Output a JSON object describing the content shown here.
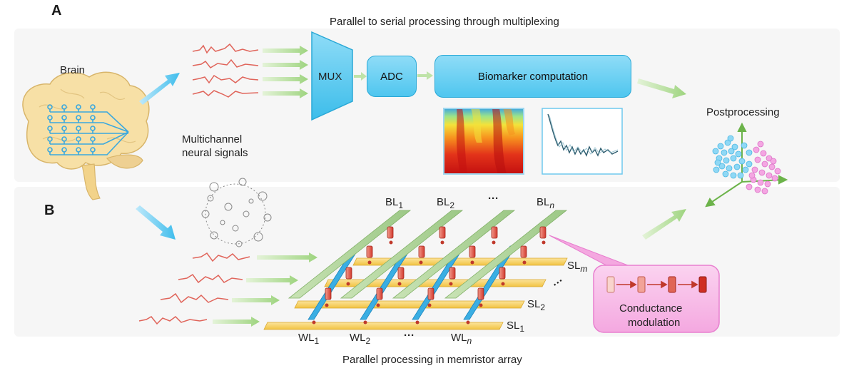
{
  "panels": {
    "a_label": "A",
    "b_label": "B",
    "a_title": "Parallel to serial processing through multiplexing",
    "b_title": "Parallel processing in memristor array"
  },
  "brain": {
    "label": "Brain",
    "signals_line1": "Multichannel",
    "signals_line2": "neural signals"
  },
  "pipeline": {
    "mux": "MUX",
    "adc": "ADC",
    "biomarker": "Biomarker computation"
  },
  "post": {
    "label": "Postprocessing"
  },
  "array": {
    "bl1": "BL",
    "bl1_sub": "1",
    "bl2": "BL",
    "bl2_sub": "2",
    "bln": "BL",
    "bln_sub": "n",
    "sl1": "SL",
    "sl1_sub": "1",
    "sl2": "SL",
    "sl2_sub": "2",
    "slm": "SL",
    "slm_sub": "m",
    "wl1": "WL",
    "wl1_sub": "1",
    "wl2": "WL",
    "wl2_sub": "2",
    "wln": "WL",
    "wln_sub": "n",
    "dots": "···"
  },
  "conductance": {
    "line1": "Conductance",
    "line2": "modulation"
  },
  "colors": {
    "accent_blue": "#4fc6ef",
    "signal_red": "#e0645a",
    "arrow_green": "#a9d98a",
    "bitline_green": "#a8cf90",
    "sourceline_yellow": "#f5cf5a",
    "pink_box": "#f7b6e6"
  }
}
